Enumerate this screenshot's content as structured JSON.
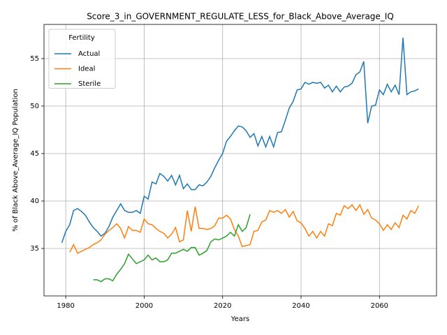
{
  "chart_data": {
    "type": "line",
    "title": "Score_3_in_GOVERNMENT_REGULATE_LESS_for_Black_Above_Average_IQ",
    "xlabel": "Years",
    "ylabel": "% of Black Above_Average_IQ Population",
    "x": [
      1979,
      1980,
      1981,
      1982,
      1983,
      1984,
      1985,
      1986,
      1987,
      1988,
      1989,
      1990,
      1991,
      1992,
      1993,
      1994,
      1995,
      1996,
      1997,
      1998,
      1999,
      2000,
      2001,
      2002,
      2003,
      2004,
      2005,
      2006,
      2007,
      2008,
      2009,
      2010,
      2011,
      2012,
      2013,
      2014,
      2015,
      2016,
      2017,
      2018,
      2019,
      2020,
      2021,
      2022,
      2023,
      2024,
      2025,
      2026,
      2027,
      2028,
      2029,
      2030,
      2031,
      2032,
      2033,
      2034,
      2035,
      2036,
      2037,
      2038,
      2039,
      2040,
      2041,
      2042,
      2043,
      2044,
      2045,
      2046,
      2047,
      2048,
      2049,
      2050,
      2051,
      2052,
      2053,
      2054,
      2055,
      2056,
      2057,
      2058,
      2059,
      2060,
      2061,
      2062,
      2063,
      2064,
      2065,
      2066,
      2067,
      2068,
      2069,
      2070
    ],
    "series": [
      {
        "name": "Actual",
        "color": "#1f77b4",
        "values": [
          35.6,
          36.8,
          37.5,
          39.0,
          39.2,
          38.9,
          38.5,
          37.8,
          37.2,
          36.8,
          36.3,
          36.6,
          37.3,
          38.3,
          39.0,
          39.7,
          39.0,
          38.8,
          38.8,
          39.0,
          38.7,
          40.5,
          40.2,
          42.0,
          41.8,
          42.9,
          42.6,
          42.1,
          42.7,
          41.7,
          42.7,
          41.3,
          41.8,
          41.2,
          41.2,
          41.7,
          41.6,
          42.0,
          42.6,
          43.5,
          44.3,
          45.0,
          46.3,
          46.8,
          47.4,
          47.9,
          47.8,
          47.4,
          46.7,
          47.1,
          45.8,
          46.8,
          45.7,
          46.8,
          45.7,
          47.2,
          47.3,
          48.5,
          49.8,
          50.5,
          51.7,
          51.8,
          52.5,
          52.3,
          52.5,
          52.4,
          52.5,
          51.9,
          52.2,
          51.5,
          52.1,
          51.5,
          52.0,
          52.1,
          52.4,
          53.3,
          53.6,
          54.7,
          48.2,
          50.0,
          50.1,
          51.7,
          51.2,
          52.3,
          51.5,
          52.2,
          51.2,
          57.2,
          51.2,
          51.5,
          51.6,
          51.8
        ]
      },
      {
        "name": "Ideal",
        "color": "#ff7f0e",
        "values": [
          null,
          null,
          34.6,
          35.4,
          34.5,
          34.7,
          34.9,
          35.1,
          35.4,
          35.6,
          35.9,
          36.5,
          36.9,
          37.2,
          37.6,
          37.1,
          36.1,
          37.3,
          36.9,
          36.9,
          36.7,
          38.1,
          37.6,
          37.5,
          37.1,
          36.8,
          36.6,
          36.1,
          36.5,
          37.2,
          35.7,
          35.9,
          39.0,
          36.8,
          39.4,
          37.1,
          37.1,
          37.0,
          37.1,
          37.4,
          38.2,
          38.2,
          38.5,
          38.1,
          37.0,
          36.3,
          35.2,
          35.3,
          35.4,
          36.8,
          36.9,
          37.8,
          38.0,
          39.0,
          38.8,
          39.0,
          38.7,
          39.1,
          38.3,
          38.9,
          37.9,
          37.7,
          37.1,
          36.3,
          36.8,
          36.1,
          36.8,
          36.3,
          37.6,
          37.4,
          38.7,
          38.5,
          39.5,
          39.2,
          39.6,
          39.0,
          39.6,
          38.6,
          39.1,
          38.2,
          38.0,
          37.6,
          36.9,
          37.5,
          37.0,
          37.7,
          37.2,
          38.5,
          38.1,
          39.0,
          38.7,
          39.5
        ]
      },
      {
        "name": "Sterile",
        "color": "#2ca02c",
        "values": [
          null,
          null,
          null,
          null,
          null,
          null,
          null,
          null,
          31.7,
          31.7,
          31.5,
          31.8,
          31.8,
          31.6,
          32.3,
          32.8,
          33.4,
          34.4,
          33.9,
          33.4,
          33.6,
          33.8,
          34.3,
          33.8,
          34.0,
          33.6,
          33.6,
          33.8,
          34.5,
          34.5,
          34.7,
          34.9,
          34.7,
          35.1,
          35.1,
          34.3,
          34.5,
          34.8,
          35.7,
          36.0,
          35.9,
          36.1,
          36.3,
          36.7,
          36.3,
          37.5,
          36.8,
          37.2,
          38.6,
          null,
          null,
          null,
          null,
          null,
          null,
          null,
          null,
          null,
          null,
          null,
          null,
          null,
          null,
          null,
          null,
          null,
          null,
          null,
          null,
          null,
          null,
          null,
          null,
          null,
          null,
          null,
          null,
          null,
          null,
          null,
          null,
          null,
          null,
          null,
          null,
          null,
          null,
          null,
          null,
          null,
          null,
          null
        ]
      }
    ],
    "legend_title": "Fertility",
    "legend": "upper left",
    "xlim": [
      1974.45,
      2074.55
    ],
    "xticks": [
      1980,
      2000,
      2020,
      2040,
      2060
    ],
    "ylim": [
      30.0,
      58.6
    ],
    "yticks": [
      35,
      40,
      45,
      50,
      55
    ],
    "grid": true
  }
}
